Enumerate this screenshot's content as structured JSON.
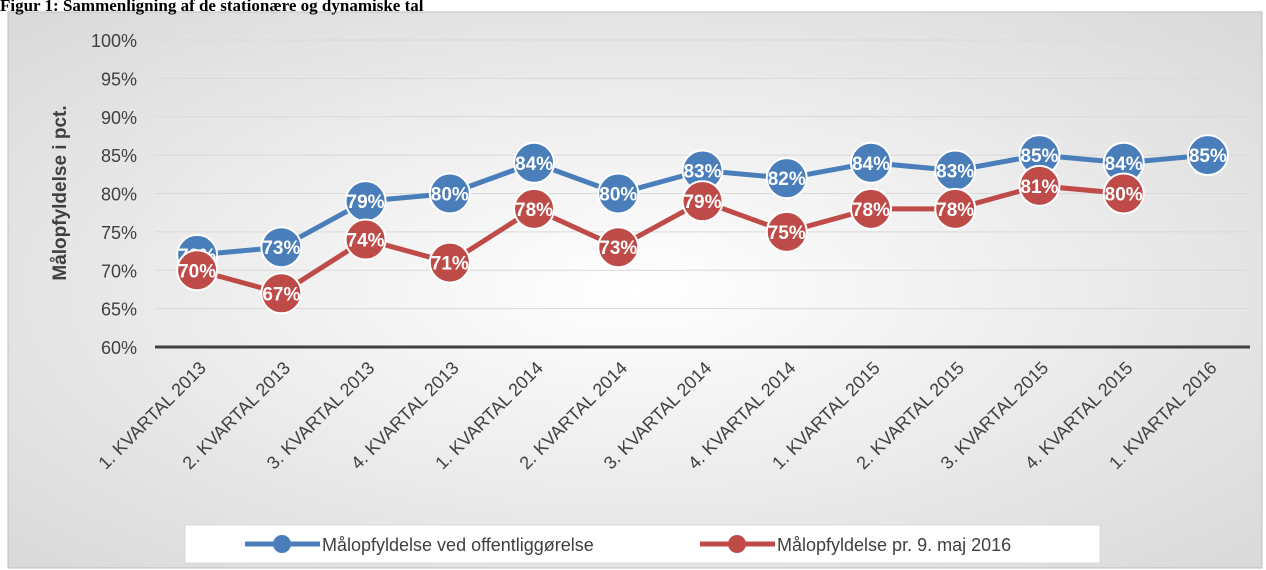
{
  "chart_data": {
    "type": "line",
    "title": "Figur 1: Sammenligning af de stationære og dynamiske tal",
    "ylabel": "Målopfyldelse i pct.",
    "categories": [
      "1. KVARTAL 2013",
      "2. KVARTAL 2013",
      "3. KVARTAL 2013",
      "4. KVARTAL 2013",
      "1. KVARTAL 2014",
      "2. KVARTAL 2014",
      "3. KVARTAL 2014",
      "4. KVARTAL 2014",
      "1. KVARTAL 2015",
      "2. KVARTAL 2015",
      "3. KVARTAL 2015",
      "4. KVARTAL 2015",
      "1. KVARTAL 2016"
    ],
    "series": [
      {
        "name": "Målopfyldelse ved offentliggørelse",
        "color": "#4a7ebb",
        "values": [
          72,
          73,
          79,
          80,
          84,
          80,
          83,
          82,
          84,
          83,
          85,
          84,
          85
        ],
        "value_labels": [
          "72%",
          "73%",
          "79%",
          "80%",
          "84%",
          "80%",
          "83%",
          "82%",
          "84%",
          "83%",
          "85%",
          "84%",
          "85%"
        ]
      },
      {
        "name": "Målopfyldelse pr. 9. maj 2016",
        "color": "#be4b48",
        "values": [
          70,
          67,
          74,
          71,
          78,
          73,
          79,
          75,
          78,
          78,
          81,
          80,
          null
        ],
        "value_labels": [
          "70%",
          "67%",
          "74%",
          "71%",
          "78%",
          "73%",
          "79%",
          "75%",
          "78%",
          "78%",
          "81%",
          "80%",
          null
        ]
      }
    ],
    "ylim": [
      60,
      100
    ],
    "yticks": [
      {
        "value": 60,
        "label": "60%"
      },
      {
        "value": 65,
        "label": "65%"
      },
      {
        "value": 70,
        "label": "70%"
      },
      {
        "value": 75,
        "label": "75%"
      },
      {
        "value": 80,
        "label": "80%"
      },
      {
        "value": 85,
        "label": "85%"
      },
      {
        "value": 90,
        "label": "90%"
      },
      {
        "value": 95,
        "label": "95%"
      },
      {
        "value": 100,
        "label": "100%"
      }
    ],
    "grid": true,
    "legend": "bottom"
  }
}
